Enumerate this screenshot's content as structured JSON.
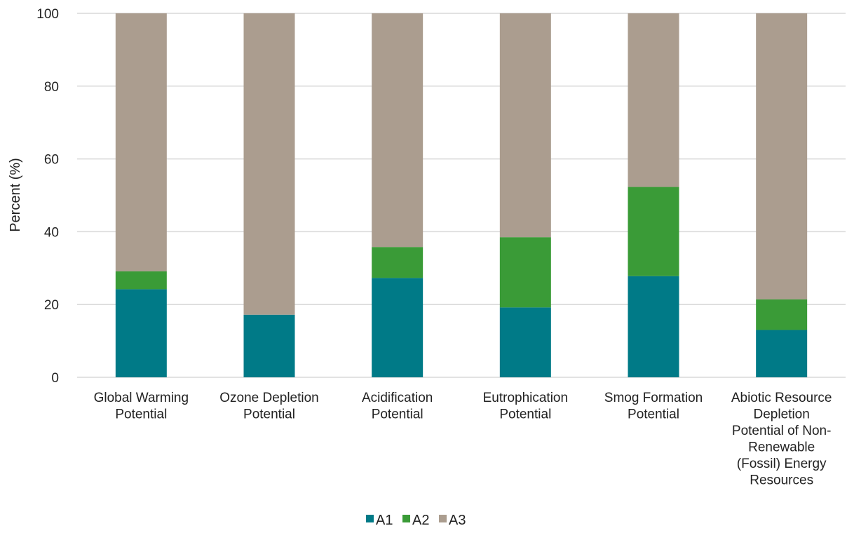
{
  "chart_data": {
    "type": "bar",
    "stacked": true,
    "categories": [
      "Global Warming Potential",
      "Ozone Depletion Potential",
      "Acidification Potential",
      "Eutrophication Potential",
      "Smog Formation Potential",
      "Abiotic Resource Depletion Potential of Non-Renewable (Fossil) Energy Resources"
    ],
    "category_lines": [
      [
        "Global Warming",
        "Potential"
      ],
      [
        "Ozone Depletion",
        "Potential"
      ],
      [
        "Acidification",
        "Potential"
      ],
      [
        "Eutrophication",
        "Potential"
      ],
      [
        "Smog Formation",
        "Potential"
      ],
      [
        "Abiotic Resource",
        "Depletion",
        "Potential of Non-",
        "Renewable",
        "(Fossil) Energy",
        "Resources"
      ]
    ],
    "series": [
      {
        "name": "A1",
        "color": "#007a87",
        "values": [
          24.2,
          17.2,
          27.3,
          19.2,
          27.8,
          13.0
        ]
      },
      {
        "name": "A2",
        "color": "#3a9b37",
        "values": [
          4.9,
          0.0,
          8.5,
          19.3,
          24.5,
          8.4
        ]
      },
      {
        "name": "A3",
        "color": "#ab9d8f",
        "values": [
          70.9,
          82.8,
          64.2,
          61.5,
          47.7,
          78.6
        ]
      }
    ],
    "title": "",
    "xlabel": "",
    "ylabel": "Percent (%)",
    "ylim": [
      0,
      100
    ],
    "yticks": [
      0,
      20,
      40,
      60,
      80,
      100
    ],
    "grid": true,
    "legend": "bottom-center"
  }
}
